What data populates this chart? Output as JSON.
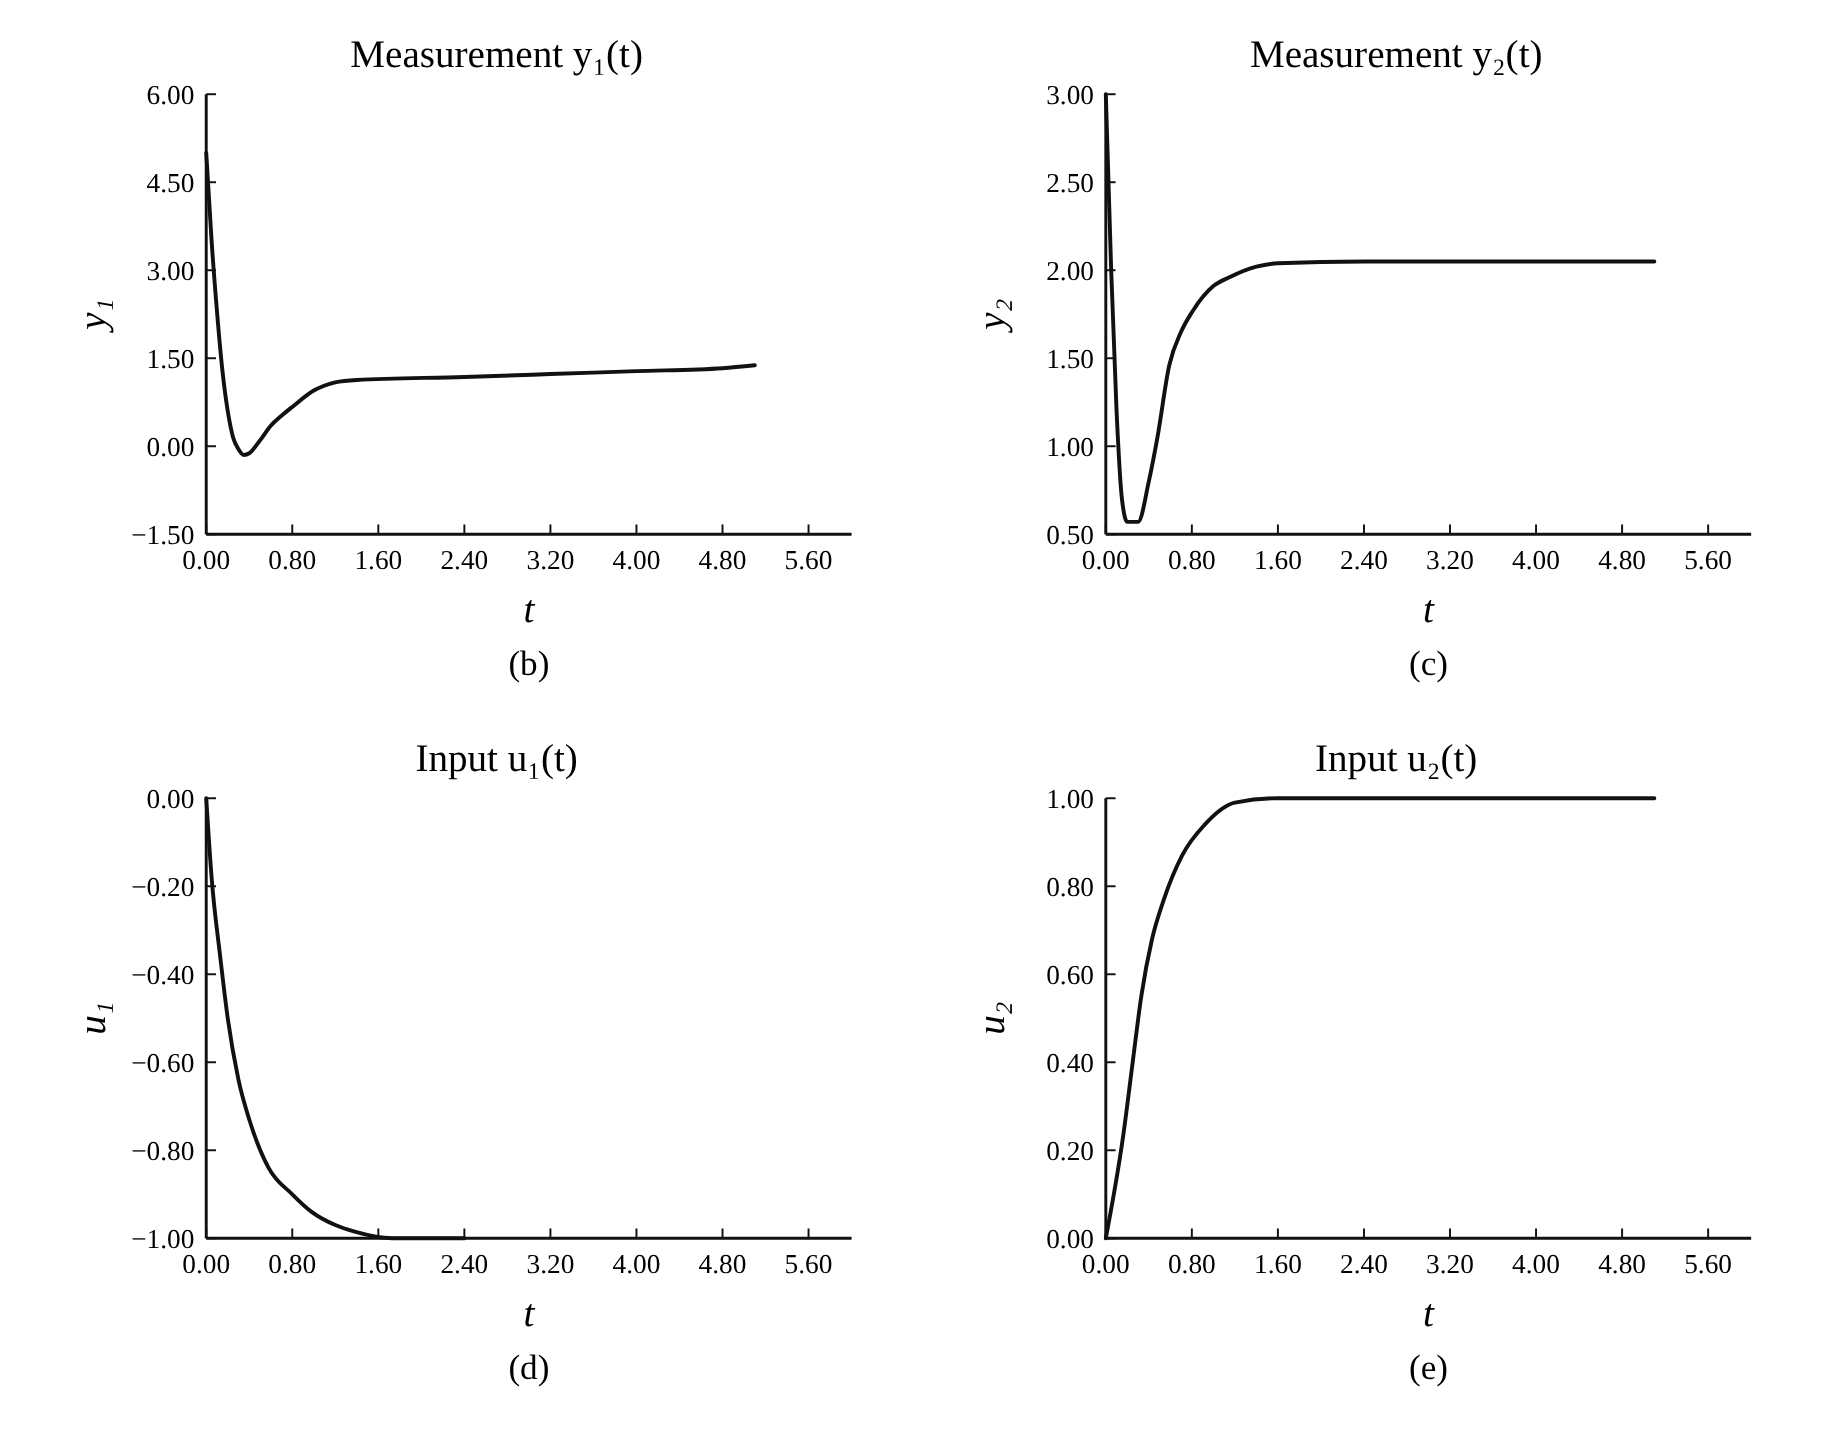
{
  "chart_data": [
    {
      "type": "line",
      "title": "Measurement y₁(t)",
      "xlabel": "t",
      "ylabel": "y₁",
      "annotations": [
        "(b)"
      ],
      "xlim": [
        0,
        6
      ],
      "xticks": [
        {
          "value": 0,
          "label": "0.00"
        },
        {
          "value": 0.8,
          "label": "0.80"
        },
        {
          "value": 1.6,
          "label": "1.60"
        },
        {
          "value": 2.4,
          "label": "2.40"
        },
        {
          "value": 3.2,
          "label": "3.20"
        },
        {
          "value": 4,
          "label": "4.00"
        },
        {
          "value": 4.8,
          "label": "4.80"
        },
        {
          "value": 5.6,
          "label": "5.60"
        }
      ],
      "ylim": [
        -1.5,
        6
      ],
      "yticks": [
        {
          "value": -1.5,
          "label": "−1.50"
        },
        {
          "value": 0,
          "label": "0.00"
        },
        {
          "value": 1.5,
          "label": "1.50"
        },
        {
          "value": 3,
          "label": "3.00"
        },
        {
          "value": 4.5,
          "label": "4.50"
        },
        {
          "value": 6,
          "label": "6.00"
        }
      ],
      "series": [
        {
          "color": "#111111",
          "x": [
            0,
            0.05,
            0.1,
            0.15,
            0.2,
            0.25,
            0.3,
            0.35,
            0.4,
            0.5,
            0.6,
            0.7,
            0.8,
            1.0,
            1.2,
            1.4,
            2.4,
            3.2,
            4.0,
            4.8,
            5.1
          ],
          "values": [
            5.0,
            3.5,
            2.3,
            1.3,
            0.6,
            0.15,
            -0.05,
            -0.15,
            -0.12,
            0.1,
            0.35,
            0.52,
            0.67,
            0.95,
            1.09,
            1.13,
            1.18,
            1.23,
            1.28,
            1.33,
            1.38
          ]
        }
      ]
    },
    {
      "type": "line",
      "title": "Measurement y₂(t)",
      "xlabel": "t",
      "ylabel": "y₂",
      "annotations": [
        "(c)"
      ],
      "xlim": [
        0,
        6
      ],
      "xticks": [
        {
          "value": 0,
          "label": "0.00"
        },
        {
          "value": 0.8,
          "label": "0.80"
        },
        {
          "value": 1.6,
          "label": "1.60"
        },
        {
          "value": 2.4,
          "label": "2.40"
        },
        {
          "value": 3.2,
          "label": "3.20"
        },
        {
          "value": 4,
          "label": "4.00"
        },
        {
          "value": 4.8,
          "label": "4.80"
        },
        {
          "value": 5.6,
          "label": "5.60"
        }
      ],
      "ylim": [
        0.5,
        3
      ],
      "yticks": [
        {
          "value": 0.5,
          "label": "0.50"
        },
        {
          "value": 1,
          "label": "1.00"
        },
        {
          "value": 1.5,
          "label": "1.50"
        },
        {
          "value": 2,
          "label": "2.00"
        },
        {
          "value": 2.5,
          "label": "2.50"
        },
        {
          "value": 3,
          "label": "3.00"
        }
      ],
      "series": [
        {
          "color": "#111111",
          "x": [
            0,
            0.05,
            0.1,
            0.15,
            0.2,
            0.3,
            0.4,
            0.48,
            0.59,
            0.7,
            0.81,
            1.0,
            1.15,
            1.4,
            1.6,
            2.4,
            3.2,
            4.0,
            4.8,
            5.1
          ],
          "values": [
            3.0,
            2.0,
            1.2,
            0.7,
            0.57,
            0.57,
            0.8,
            1.05,
            1.46,
            1.65,
            1.77,
            1.91,
            1.96,
            2.02,
            2.04,
            2.05,
            2.05,
            2.05,
            2.05,
            2.05
          ]
        }
      ]
    },
    {
      "type": "line",
      "title": "Input u₁(t)",
      "xlabel": "t",
      "ylabel": "u₁",
      "annotations": [
        "(d)"
      ],
      "xlim": [
        0,
        6
      ],
      "xticks": [
        {
          "value": 0,
          "label": "0.00"
        },
        {
          "value": 0.8,
          "label": "0.80"
        },
        {
          "value": 1.6,
          "label": "1.60"
        },
        {
          "value": 2.4,
          "label": "2.40"
        },
        {
          "value": 3.2,
          "label": "3.20"
        },
        {
          "value": 4,
          "label": "4.00"
        },
        {
          "value": 4.8,
          "label": "4.80"
        },
        {
          "value": 5.6,
          "label": "5.60"
        }
      ],
      "ylim": [
        -1,
        0
      ],
      "yticks": [
        {
          "value": -1,
          "label": "−1.00"
        },
        {
          "value": -0.8,
          "label": "−0.80"
        },
        {
          "value": -0.6,
          "label": "−0.60"
        },
        {
          "value": -0.4,
          "label": "−0.40"
        },
        {
          "value": -0.2,
          "label": "−0.20"
        },
        {
          "value": 0,
          "label": "0.00"
        }
      ],
      "series": [
        {
          "color": "#111111",
          "x": [
            0,
            0.05,
            0.13,
            0.2,
            0.3,
            0.4,
            0.58,
            0.8,
            0.98,
            1.2,
            1.38,
            1.73,
            2.4
          ],
          "values": [
            0,
            -0.18,
            -0.36,
            -0.5,
            -0.64,
            -0.73,
            -0.84,
            -0.9,
            -0.94,
            -0.97,
            -0.985,
            -1.0,
            -1.0
          ]
        }
      ]
    },
    {
      "type": "line",
      "title": "Input u₂(t)",
      "xlabel": "t",
      "ylabel": "u₂",
      "annotations": [
        "(e)"
      ],
      "xlim": [
        0,
        6
      ],
      "xticks": [
        {
          "value": 0,
          "label": "0.00"
        },
        {
          "value": 0.8,
          "label": "0.80"
        },
        {
          "value": 1.6,
          "label": "1.60"
        },
        {
          "value": 2.4,
          "label": "2.40"
        },
        {
          "value": 3.2,
          "label": "3.20"
        },
        {
          "value": 4,
          "label": "4.00"
        },
        {
          "value": 4.8,
          "label": "4.80"
        },
        {
          "value": 5.6,
          "label": "5.60"
        }
      ],
      "ylim": [
        0,
        1
      ],
      "yticks": [
        {
          "value": 0,
          "label": "0.00"
        },
        {
          "value": 0.2,
          "label": "0.20"
        },
        {
          "value": 0.4,
          "label": "0.40"
        },
        {
          "value": 0.6,
          "label": "0.60"
        },
        {
          "value": 0.8,
          "label": "0.80"
        },
        {
          "value": 1,
          "label": "1.00"
        }
      ],
      "series": [
        {
          "color": "#111111",
          "x": [
            0,
            0.16,
            0.25,
            0.33,
            0.43,
            0.54,
            0.71,
            0.92,
            1.2,
            1.6,
            2.4,
            3.2,
            4.0,
            4.8,
            5.1
          ],
          "values": [
            0,
            0.23,
            0.4,
            0.55,
            0.68,
            0.77,
            0.87,
            0.94,
            0.99,
            1.0,
            1.0,
            1.0,
            1.0,
            1.0,
            1.0
          ]
        }
      ]
    }
  ]
}
